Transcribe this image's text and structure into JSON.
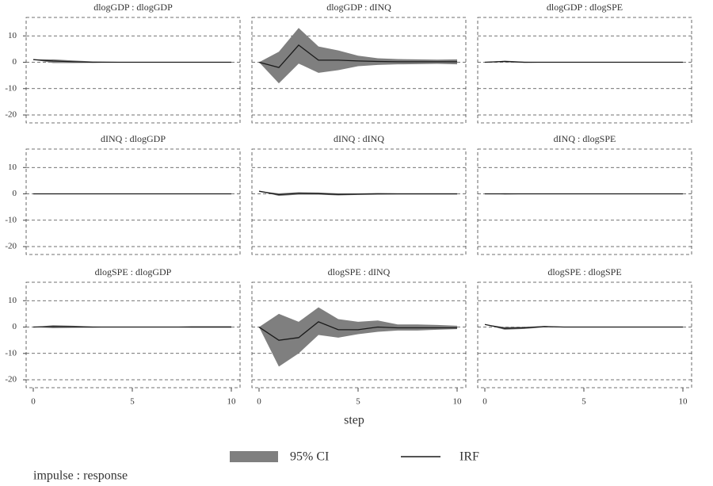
{
  "figure": {
    "xlabel": "step",
    "note": "impulse : response",
    "xlim": [
      -0.36,
      10.44
    ],
    "xticks": [
      0,
      5,
      10
    ],
    "ylim": [
      -23,
      17
    ],
    "yticks": [
      -20,
      -10,
      0,
      10
    ],
    "grid": true,
    "legend": [
      {
        "name": "95% CI",
        "color": "#7f7f7f"
      },
      {
        "name": "IRF",
        "color": "#1a1a1a"
      }
    ]
  },
  "chart_data": [
    {
      "type": "line",
      "title": "dlogGDP : dlogGDP",
      "x": [
        0,
        1,
        2,
        3,
        4,
        5,
        6,
        7,
        8,
        9,
        10
      ],
      "irf": [
        1,
        0.5,
        0.2,
        0,
        0,
        0,
        0,
        0,
        0,
        0,
        0
      ],
      "ci_lower": [
        1,
        -0.3,
        -0.3,
        -0.2,
        -0.1,
        -0.1,
        -0.1,
        -0.1,
        -0.1,
        -0.1,
        -0.1
      ],
      "ci_upper": [
        1,
        1.1,
        0.7,
        0.3,
        0.2,
        0.1,
        0.1,
        0.1,
        0.1,
        0.1,
        0.1
      ]
    },
    {
      "type": "line",
      "title": "dlogGDP : dINQ",
      "x": [
        0,
        1,
        2,
        3,
        4,
        5,
        6,
        7,
        8,
        9,
        10
      ],
      "irf": [
        0,
        -2,
        6.5,
        0.8,
        0.8,
        0.5,
        0.3,
        0.2,
        0.2,
        0.2,
        0.2
      ],
      "ci_lower": [
        0,
        -8,
        -0.5,
        -4,
        -3,
        -1.5,
        -1,
        -0.8,
        -0.7,
        -0.6,
        -0.8
      ],
      "ci_upper": [
        0,
        4,
        13,
        6,
        4.5,
        2.5,
        1.5,
        1.2,
        1.1,
        1,
        1.1
      ]
    },
    {
      "type": "line",
      "title": "dlogGDP : dlogSPE",
      "x": [
        0,
        1,
        2,
        3,
        4,
        5,
        6,
        7,
        8,
        9,
        10
      ],
      "irf": [
        0,
        0.3,
        0,
        0,
        0,
        0,
        0,
        0,
        0,
        0,
        0
      ],
      "ci_lower": [
        0,
        0,
        -0.2,
        -0.1,
        -0.1,
        -0.1,
        -0.1,
        -0.1,
        -0.1,
        -0.1,
        -0.1
      ],
      "ci_upper": [
        0,
        0.6,
        0.2,
        0.1,
        0.1,
        0.1,
        0.1,
        0.1,
        0.1,
        0.1,
        0.1
      ]
    },
    {
      "type": "line",
      "title": "dINQ : dlogGDP",
      "x": [
        0,
        1,
        2,
        3,
        4,
        5,
        6,
        7,
        8,
        9,
        10
      ],
      "irf": [
        0,
        0,
        0,
        0,
        0,
        0,
        0,
        0,
        0,
        0,
        0
      ],
      "ci_lower": [
        0,
        -0.1,
        -0.1,
        -0.1,
        -0.1,
        -0.1,
        -0.1,
        -0.1,
        -0.1,
        -0.1,
        -0.1
      ],
      "ci_upper": [
        0,
        0.1,
        0.1,
        0.1,
        0.1,
        0.1,
        0.1,
        0.1,
        0.1,
        0.1,
        0.1
      ]
    },
    {
      "type": "line",
      "title": "dINQ : dINQ",
      "x": [
        0,
        1,
        2,
        3,
        4,
        5,
        6,
        7,
        8,
        9,
        10
      ],
      "irf": [
        1,
        -0.3,
        0.2,
        0.1,
        -0.2,
        -0.1,
        0,
        0,
        0,
        0,
        0
      ],
      "ci_lower": [
        1,
        -0.8,
        -0.3,
        -0.3,
        -0.6,
        -0.4,
        -0.3,
        -0.2,
        -0.2,
        -0.2,
        -0.2
      ],
      "ci_upper": [
        1,
        0.2,
        0.6,
        0.5,
        0.2,
        0.2,
        0.3,
        0.2,
        0.2,
        0.2,
        0.2
      ]
    },
    {
      "type": "line",
      "title": "dINQ : dlogSPE",
      "x": [
        0,
        1,
        2,
        3,
        4,
        5,
        6,
        7,
        8,
        9,
        10
      ],
      "irf": [
        0,
        0,
        0,
        0,
        0,
        0,
        0,
        0,
        0,
        0,
        0
      ],
      "ci_lower": [
        0,
        -0.2,
        -0.1,
        -0.1,
        -0.1,
        -0.1,
        -0.1,
        -0.1,
        -0.1,
        -0.1,
        -0.1
      ],
      "ci_upper": [
        0,
        0.2,
        0.1,
        0.1,
        0.1,
        0.1,
        0.1,
        0.1,
        0.1,
        0.1,
        0.1
      ]
    },
    {
      "type": "line",
      "title": "dlogSPE : dlogGDP",
      "x": [
        0,
        1,
        2,
        3,
        4,
        5,
        6,
        7,
        8,
        9,
        10
      ],
      "irf": [
        0,
        0.2,
        0.1,
        0,
        0,
        0,
        0,
        0,
        0,
        0,
        0
      ],
      "ci_lower": [
        0,
        -0.4,
        -0.3,
        -0.2,
        -0.1,
        -0.1,
        -0.1,
        -0.1,
        -0.2,
        -0.2,
        -0.2
      ],
      "ci_upper": [
        0,
        0.7,
        0.5,
        0.2,
        0.1,
        0.1,
        0.1,
        0.1,
        0.3,
        0.3,
        0.3
      ]
    },
    {
      "type": "line",
      "title": "dlogSPE : dINQ",
      "x": [
        0,
        1,
        2,
        3,
        4,
        5,
        6,
        7,
        8,
        9,
        10
      ],
      "irf": [
        0,
        -5,
        -4,
        2,
        -1,
        -1,
        0,
        -0.3,
        -0.3,
        -0.3,
        -0.3
      ],
      "ci_lower": [
        0,
        -15,
        -10,
        -3,
        -4,
        -2.7,
        -1.8,
        -1.3,
        -1.3,
        -1,
        -0.8
      ],
      "ci_upper": [
        0,
        5,
        2,
        7.5,
        3,
        2,
        2.5,
        1,
        1,
        0.8,
        0.5
      ]
    },
    {
      "type": "line",
      "title": "dlogSPE : dlogSPE",
      "x": [
        0,
        1,
        2,
        3,
        4,
        5,
        6,
        7,
        8,
        9,
        10
      ],
      "irf": [
        1,
        -0.5,
        -0.3,
        0.2,
        0,
        0,
        0,
        0,
        0,
        0,
        0
      ],
      "ci_lower": [
        1,
        -1,
        -0.7,
        -0.1,
        -0.1,
        -0.1,
        -0.1,
        -0.1,
        -0.1,
        -0.1,
        -0.1
      ],
      "ci_upper": [
        1,
        0,
        0.1,
        0.4,
        0.1,
        0.1,
        0.1,
        0.1,
        0.1,
        0.1,
        0.1
      ]
    }
  ]
}
